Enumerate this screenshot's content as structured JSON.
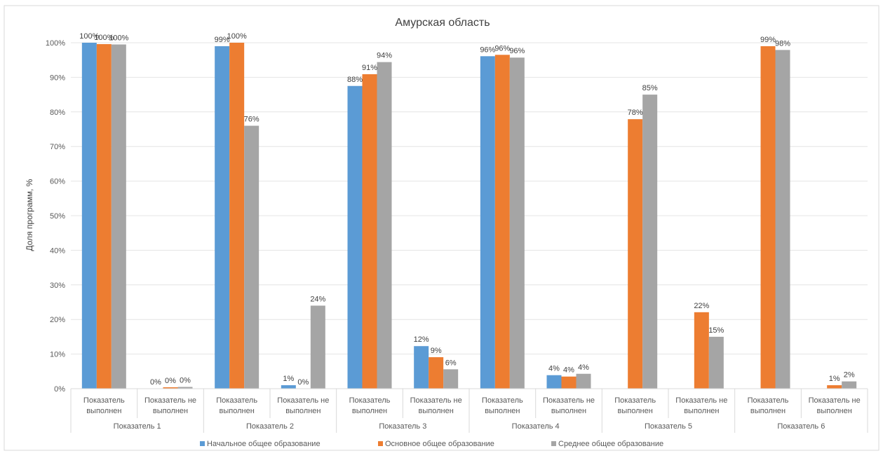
{
  "chart_data": {
    "type": "bar",
    "title": "Амурская область",
    "xlabel": "",
    "ylabel": "Доля программ, %",
    "ylim": [
      0,
      1
    ],
    "yticks": [
      "0%",
      "10%",
      "20%",
      "30%",
      "40%",
      "50%",
      "60%",
      "70%",
      "80%",
      "90%",
      "100%"
    ],
    "grid": true,
    "legend_position": "bottom",
    "groups": [
      "Показатель 1",
      "Показатель 2",
      "Показатель 3",
      "Показатель 4",
      "Показатель 5",
      "Показатель 6"
    ],
    "categories": [
      [
        "Показатель",
        "выполнен"
      ],
      [
        "Показатель не",
        "выполнен"
      ],
      [
        "Показатель",
        "выполнен"
      ],
      [
        "Показатель не",
        "выполнен"
      ],
      [
        "Показатель",
        "выполнен"
      ],
      [
        "Показатель не",
        "выполнен"
      ],
      [
        "Показатель",
        "выполнен"
      ],
      [
        "Показатель не",
        "выполнен"
      ],
      [
        "Показатель",
        "выполнен"
      ],
      [
        "Показатель не",
        "выполнен"
      ],
      [
        "Показатель",
        "выполнен"
      ],
      [
        "Показатель не",
        "выполнен"
      ]
    ],
    "series": [
      {
        "name": "Начальное общее образование",
        "color": "#5B9BD5",
        "values": [
          1.0,
          0.0,
          0.99,
          0.01,
          0.875,
          0.123,
          0.961,
          0.039,
          null,
          null,
          null,
          null
        ],
        "labels": [
          "100%",
          "0%",
          "99%",
          "1%",
          "88%",
          "12%",
          "96%",
          "4%",
          null,
          null,
          null,
          null
        ]
      },
      {
        "name": "Основное общее образование",
        "color": "#ED7D31",
        "values": [
          0.996,
          0.004,
          1.0,
          0.0,
          0.909,
          0.091,
          0.965,
          0.035,
          0.779,
          0.221,
          0.99,
          0.01
        ],
        "labels": [
          "100%",
          "0%",
          "100%",
          "0%",
          "91%",
          "9%",
          "96%",
          "4%",
          "78%",
          "22%",
          "99%",
          "1%"
        ]
      },
      {
        "name": "Среднее общее образование",
        "color": "#A5A5A5",
        "values": [
          0.995,
          0.005,
          0.76,
          0.24,
          0.944,
          0.056,
          0.957,
          0.043,
          0.85,
          0.15,
          0.979,
          0.021
        ],
        "labels": [
          "100%",
          "0%",
          "76%",
          "24%",
          "94%",
          "6%",
          "96%",
          "4%",
          "85%",
          "15%",
          "98%",
          "2%"
        ]
      }
    ]
  }
}
